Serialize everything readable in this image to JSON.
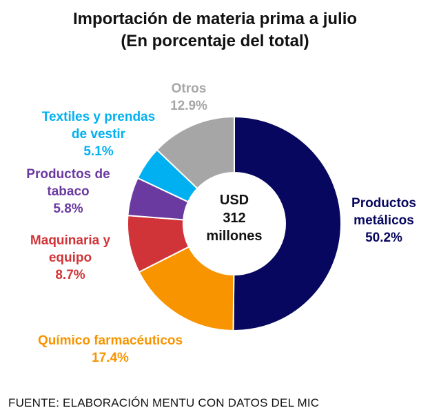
{
  "title_line1": "Importación de materia prima a julio",
  "title_line2": "(En porcentaje del total)",
  "center": {
    "line1": "USD",
    "line2": "312",
    "line3": "millones"
  },
  "source": "FUENTE: ELABORACIÓN MENTU CON DATOS DEL MIC",
  "chart_data": {
    "type": "pie",
    "title": "Importación de materia prima a julio (En porcentaje del total)",
    "unit": "%",
    "slices": [
      {
        "label": "Productos metálicos",
        "label_lines": [
          "Productos",
          "metálicos"
        ],
        "value": 50.2,
        "value_label": "50.2%",
        "color": "#07075f"
      },
      {
        "label": "Químico farmacéuticos",
        "label_lines": [
          "Químico farmacéuticos"
        ],
        "value": 17.4,
        "value_label": "17.4%",
        "color": "#f79400"
      },
      {
        "label": "Maquinaria y equipo",
        "label_lines": [
          "Maquinaria y",
          "equipo"
        ],
        "value": 8.7,
        "value_label": "8.7%",
        "color": "#d13438"
      },
      {
        "label": "Productos de tabaco",
        "label_lines": [
          "Productos de",
          "tabaco"
        ],
        "value": 5.8,
        "value_label": "5.8%",
        "color": "#6b3aa0"
      },
      {
        "label": "Textiles y prendas de vestir",
        "label_lines": [
          "Textiles y prendas",
          "de vestir"
        ],
        "value": 5.1,
        "value_label": "5.1%",
        "color": "#00b0f0"
      },
      {
        "label": "Otros",
        "label_lines": [
          "Otros"
        ],
        "value": 12.9,
        "value_label": "12.9%",
        "color": "#a6a6a6"
      }
    ]
  }
}
